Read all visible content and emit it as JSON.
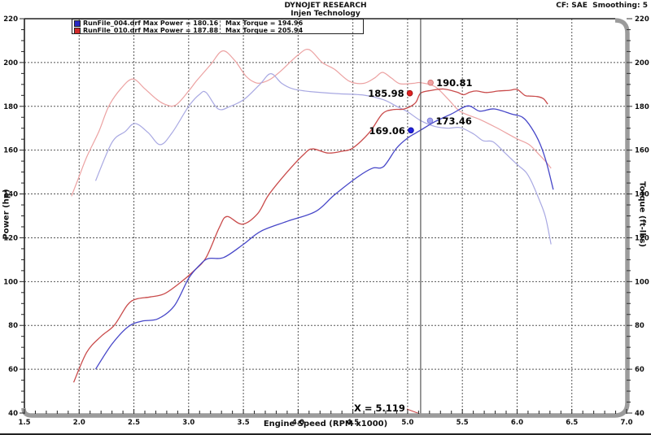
{
  "header": {
    "title": "DYNOJET RESEARCH",
    "subtitle": "Injen Technology",
    "correction": "CF: SAE  Smoothing: 5"
  },
  "legend": {
    "entries": [
      {
        "swatch_color": "#2a2ac4",
        "main": "RunFile_004.drf Max Power = 180.16",
        "torque": "Max Torque = 194.96"
      },
      {
        "swatch_color": "#d22a2a",
        "main": "RunFile_010.drf Max Power = 187.88",
        "torque": "Max Torque = 205.94"
      }
    ]
  },
  "chart_data": {
    "type": "line",
    "title": "DYNOJET RESEARCH - Injen Technology",
    "xlabel": "Engine Speed (RPM x1000)",
    "ylabel": "Power (hp)",
    "ylabel_right": "Torque (ft-lbs)",
    "xlim": [
      1.5,
      7.0
    ],
    "ylim": [
      40,
      220
    ],
    "x_tick_labels": [
      "1.5",
      "2.0",
      "2.5",
      "3.0",
      "3.5",
      "4.0",
      "4.5",
      "5.0",
      "5.5",
      "6.0",
      "6.5",
      "7.0"
    ],
    "y_tick_labels": [
      "40",
      "60",
      "80",
      "100",
      "120",
      "140",
      "160",
      "180",
      "200",
      "220"
    ],
    "x_major_step": 0.5,
    "x_minor_step": 0.1,
    "y_major_step": 20,
    "y_minor_step": 5,
    "grid": "dashed",
    "legend_position": "top-left",
    "cursor": {
      "rpm": 5.119,
      "label": "X = 5.119"
    },
    "annotations": [
      {
        "id": "cursor-power-red",
        "text": "185.98",
        "rpm": 5.02,
        "value": 185.98,
        "side": "left",
        "fill": "#e02222",
        "stroke": "#a31212"
      },
      {
        "id": "cursor-torque-red",
        "text": "190.81",
        "rpm": 5.21,
        "value": 190.81,
        "side": "right",
        "fill": "#f2a2a2",
        "stroke": "#d67c7c"
      },
      {
        "id": "cursor-power-blue",
        "text": "169.06",
        "rpm": 5.03,
        "value": 169.06,
        "side": "left",
        "fill": "#2222e0",
        "stroke": "#1111a0"
      },
      {
        "id": "cursor-torque-blue",
        "text": "173.46",
        "rpm": 5.205,
        "value": 173.46,
        "side": "right",
        "fill": "#a6a6ef",
        "stroke": "#7d7dd6"
      }
    ],
    "series": [
      {
        "id": "torque-red",
        "name": "RunFile_010.drf Torque (ft-lbs)",
        "color": "#eca2a2",
        "width": 1.2,
        "points": [
          [
            1.93,
            139
          ],
          [
            2.0,
            148
          ],
          [
            2.07,
            157
          ],
          [
            2.18,
            168.5
          ],
          [
            2.27,
            180
          ],
          [
            2.38,
            188
          ],
          [
            2.49,
            192.5
          ],
          [
            2.6,
            188
          ],
          [
            2.7,
            183.5
          ],
          [
            2.78,
            181
          ],
          [
            2.88,
            180.5
          ],
          [
            3.0,
            187
          ],
          [
            3.07,
            191.5
          ],
          [
            3.2,
            199
          ],
          [
            3.31,
            205.3
          ],
          [
            3.42,
            201
          ],
          [
            3.52,
            194
          ],
          [
            3.6,
            191
          ],
          [
            3.66,
            190.7
          ],
          [
            3.75,
            192.5
          ],
          [
            3.85,
            196.5
          ],
          [
            4.0,
            203.5
          ],
          [
            4.1,
            205.9
          ],
          [
            4.22,
            200
          ],
          [
            4.33,
            197
          ],
          [
            4.47,
            191.4
          ],
          [
            4.6,
            190.5
          ],
          [
            4.7,
            193
          ],
          [
            4.77,
            195.5
          ],
          [
            4.85,
            193
          ],
          [
            4.93,
            190.3
          ],
          [
            5.05,
            190.5
          ],
          [
            5.119,
            190.8
          ],
          [
            5.25,
            189
          ],
          [
            5.37,
            183.3
          ],
          [
            5.48,
            177.7
          ],
          [
            5.66,
            174
          ],
          [
            5.81,
            170.3
          ],
          [
            5.99,
            165.4
          ],
          [
            6.11,
            162.5
          ],
          [
            6.2,
            158
          ],
          [
            6.27,
            154.3
          ],
          [
            6.31,
            151.7
          ]
        ]
      },
      {
        "id": "torque-blue",
        "name": "RunFile_004.drf Torque (ft-lbs)",
        "color": "#a8a8e2",
        "width": 1.2,
        "points": [
          [
            2.15,
            146
          ],
          [
            2.3,
            163.5
          ],
          [
            2.42,
            168.5
          ],
          [
            2.51,
            172.2
          ],
          [
            2.63,
            168
          ],
          [
            2.74,
            162.5
          ],
          [
            2.85,
            168
          ],
          [
            3.0,
            180
          ],
          [
            3.1,
            185.5
          ],
          [
            3.16,
            186.3
          ],
          [
            3.27,
            178.8
          ],
          [
            3.38,
            180
          ],
          [
            3.51,
            183.3
          ],
          [
            3.65,
            190
          ],
          [
            3.75,
            194.9
          ],
          [
            3.85,
            190.5
          ],
          [
            3.95,
            188
          ],
          [
            4.1,
            186.8
          ],
          [
            4.35,
            185.8
          ],
          [
            4.6,
            185.1
          ],
          [
            4.78,
            183
          ],
          [
            4.9,
            180
          ],
          [
            5.0,
            177.5
          ],
          [
            5.119,
            173.5
          ],
          [
            5.25,
            170.8
          ],
          [
            5.37,
            170
          ],
          [
            5.48,
            170.3
          ],
          [
            5.6,
            167.5
          ],
          [
            5.69,
            164.3
          ],
          [
            5.78,
            163.8
          ],
          [
            5.89,
            158.7
          ],
          [
            6.0,
            153.5
          ],
          [
            6.08,
            150
          ],
          [
            6.13,
            145.8
          ],
          [
            6.2,
            137.6
          ],
          [
            6.26,
            129.4
          ],
          [
            6.31,
            117
          ]
        ]
      },
      {
        "id": "power-red",
        "name": "RunFile_010.drf Power (hp)",
        "color": "#c94b4b",
        "width": 1.3,
        "points": [
          [
            1.95,
            54
          ],
          [
            2.07,
            67.8
          ],
          [
            2.2,
            75
          ],
          [
            2.32,
            80
          ],
          [
            2.44,
            89.3
          ],
          [
            2.52,
            92
          ],
          [
            2.65,
            93
          ],
          [
            2.78,
            94.5
          ],
          [
            2.93,
            99.8
          ],
          [
            3.05,
            105
          ],
          [
            3.16,
            111
          ],
          [
            3.28,
            124.7
          ],
          [
            3.35,
            129.7
          ],
          [
            3.49,
            126.2
          ],
          [
            3.63,
            131
          ],
          [
            3.73,
            139.5
          ],
          [
            3.9,
            150
          ],
          [
            4.05,
            158
          ],
          [
            4.13,
            160.6
          ],
          [
            4.27,
            158.7
          ],
          [
            4.4,
            159.5
          ],
          [
            4.5,
            161
          ],
          [
            4.65,
            168
          ],
          [
            4.77,
            176.6
          ],
          [
            4.87,
            178.5
          ],
          [
            4.97,
            178.8
          ],
          [
            5.07,
            181.5
          ],
          [
            5.119,
            186
          ],
          [
            5.22,
            187.3
          ],
          [
            5.33,
            187.9
          ],
          [
            5.45,
            186.5
          ],
          [
            5.51,
            185.3
          ],
          [
            5.57,
            186.5
          ],
          [
            5.63,
            187
          ],
          [
            5.72,
            186.3
          ],
          [
            5.83,
            187
          ],
          [
            5.93,
            187.3
          ],
          [
            6.0,
            187.7
          ],
          [
            6.07,
            185
          ],
          [
            6.11,
            184.7
          ],
          [
            6.18,
            184.5
          ],
          [
            6.24,
            183.5
          ],
          [
            6.28,
            181
          ]
        ]
      },
      {
        "id": "power-blue",
        "name": "RunFile_004.drf Power (hp)",
        "color": "#4646c8",
        "width": 1.3,
        "points": [
          [
            2.15,
            60
          ],
          [
            2.3,
            71.5
          ],
          [
            2.45,
            79.5
          ],
          [
            2.58,
            82
          ],
          [
            2.72,
            83
          ],
          [
            2.87,
            89
          ],
          [
            3.0,
            101.5
          ],
          [
            3.1,
            107.5
          ],
          [
            3.18,
            110.5
          ],
          [
            3.32,
            111
          ],
          [
            3.5,
            117
          ],
          [
            3.66,
            123
          ],
          [
            3.9,
            127.5
          ],
          [
            4.16,
            132
          ],
          [
            4.33,
            139.5
          ],
          [
            4.55,
            148
          ],
          [
            4.68,
            151.8
          ],
          [
            4.78,
            152.5
          ],
          [
            4.9,
            161
          ],
          [
            5.0,
            165.5
          ],
          [
            5.119,
            169.1
          ],
          [
            5.25,
            173
          ],
          [
            5.4,
            176.5
          ],
          [
            5.55,
            180.2
          ],
          [
            5.66,
            177.8
          ],
          [
            5.79,
            178.8
          ],
          [
            5.95,
            176.5
          ],
          [
            6.05,
            175
          ],
          [
            6.13,
            170.3
          ],
          [
            6.21,
            162.8
          ],
          [
            6.27,
            154
          ],
          [
            6.33,
            142
          ]
        ]
      }
    ],
    "max_values": {
      "run_004_max_power": 180.16,
      "run_004_max_torque": 194.96,
      "run_010_max_power": 187.88,
      "run_010_max_torque": 205.94
    }
  }
}
